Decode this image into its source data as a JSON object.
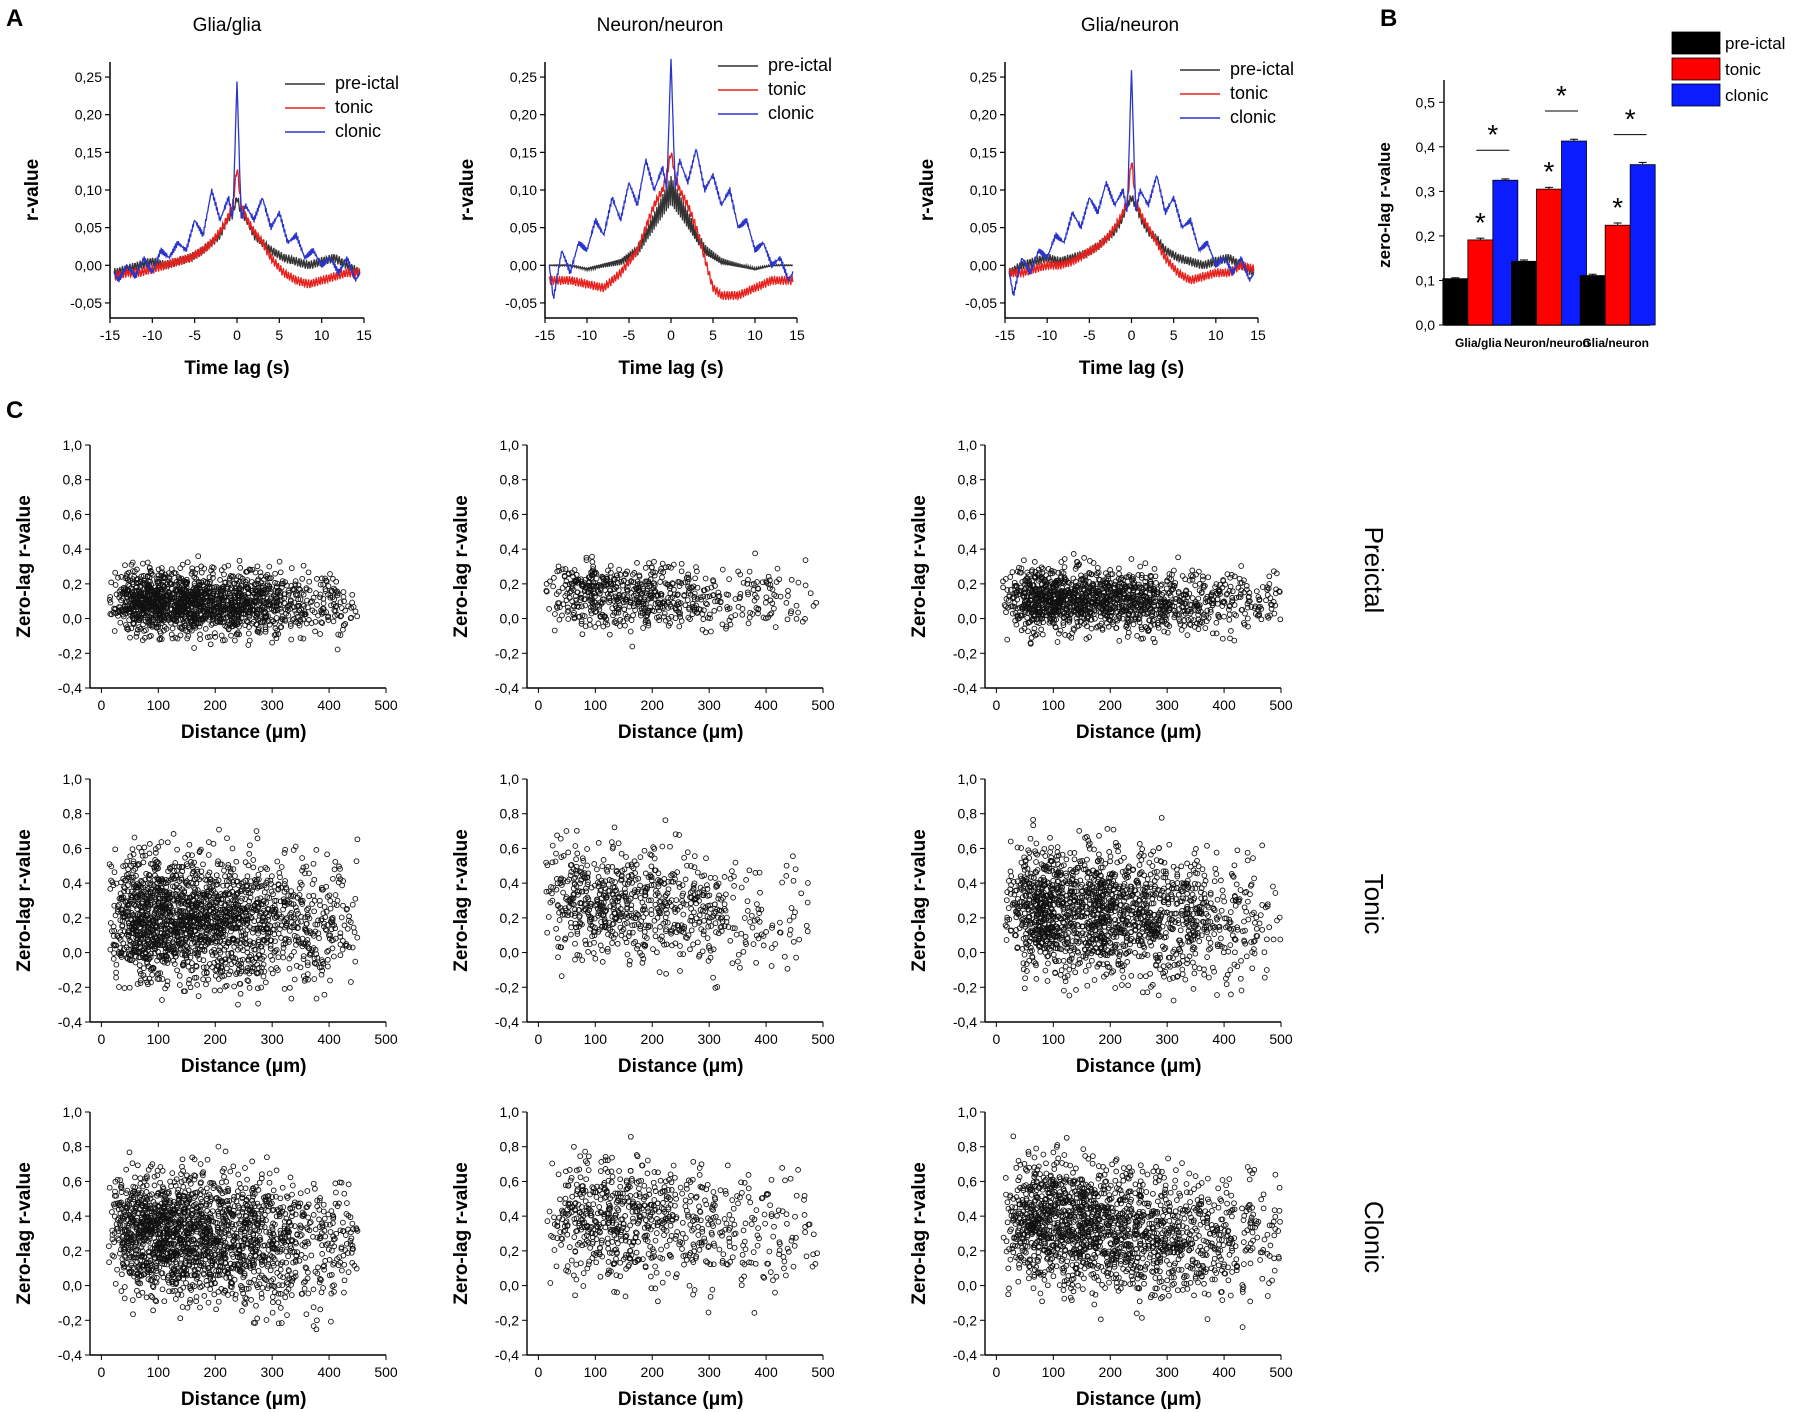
{
  "panel_labels": {
    "a": "A",
    "b": "B",
    "c": "C"
  },
  "chart_data": [
    {
      "id": "A1",
      "type": "line",
      "title": "Glia/glia",
      "xlabel": "Time lag (s)",
      "ylabel": "r-value",
      "xlim": [
        -15,
        15
      ],
      "ylim": [
        -0.07,
        0.27
      ],
      "xticks": [
        -15,
        -10,
        -5,
        0,
        5,
        10,
        15
      ],
      "xtick_labels": [
        "-15",
        "-10",
        "-5",
        "0",
        "5",
        "10",
        "15"
      ],
      "yticks": [
        -0.05,
        0,
        0.05,
        0.1,
        0.15,
        0.2,
        0.25
      ],
      "ytick_labels": [
        "-0,05",
        "0,00",
        "0,05",
        "0,10",
        "0,15",
        "0,20",
        "0,25"
      ],
      "series": [
        {
          "name": "pre-ictal",
          "color": "#333333",
          "x": [
            -14.5,
            -13,
            -11.5,
            -10,
            -8.5,
            -7,
            -5.5,
            -4,
            -3,
            -2,
            -1.2,
            -0.5,
            0,
            0.5,
            1.2,
            2,
            3,
            4,
            5.5,
            7,
            8.5,
            10,
            11.5,
            13,
            14.5
          ],
          "y": [
            -0.01,
            -0.005,
            0,
            0.005,
            0,
            0.005,
            0.01,
            0.02,
            0.03,
            0.04,
            0.06,
            0.07,
            0.09,
            0.07,
            0.06,
            0.04,
            0.03,
            0.02,
            0.01,
            0.005,
            0,
            0.005,
            0.01,
            0,
            -0.01
          ]
        },
        {
          "name": "tonic",
          "color": "#e8201c",
          "x": [
            -14.5,
            -13,
            -11.5,
            -10,
            -8.5,
            -7,
            -5.5,
            -4,
            -3,
            -2,
            -1.2,
            -0.5,
            0,
            0.5,
            1.2,
            2,
            3,
            4,
            5.5,
            7,
            8.5,
            10,
            11.5,
            13,
            14.5
          ],
          "y": [
            -0.015,
            -0.01,
            -0.01,
            -0.005,
            0,
            0.005,
            0.01,
            0.02,
            0.03,
            0.045,
            0.06,
            0.08,
            0.13,
            0.08,
            0.06,
            0.045,
            0.03,
            0.01,
            -0.01,
            -0.02,
            -0.025,
            -0.02,
            -0.015,
            -0.01,
            -0.01
          ]
        },
        {
          "name": "clonic",
          "color": "#2b35c9",
          "x": [
            -14.5,
            -14,
            -13,
            -12,
            -11,
            -10,
            -9,
            -8,
            -7,
            -6,
            -5,
            -4,
            -3,
            -2,
            -1,
            -0.5,
            0,
            0.5,
            1,
            2,
            3,
            4,
            5,
            6,
            7,
            8,
            9,
            10,
            11,
            12,
            13,
            14,
            14.5
          ],
          "y": [
            -0.01,
            -0.02,
            0,
            -0.015,
            0.01,
            -0.01,
            0.02,
            0.01,
            0.03,
            0.02,
            0.06,
            0.04,
            0.1,
            0.06,
            0.09,
            0.06,
            0.245,
            0.06,
            0.08,
            0.06,
            0.09,
            0.05,
            0.07,
            0.03,
            0.04,
            0.01,
            0.02,
            0.0,
            0.01,
            -0.01,
            0.01,
            -0.02,
            -0.01
          ]
        }
      ]
    },
    {
      "id": "A2",
      "type": "line",
      "title": "Neuron/neuron",
      "xlabel": "Time lag (s)",
      "ylabel": "r-value",
      "xlim": [
        -15,
        15
      ],
      "ylim": [
        -0.07,
        0.27
      ],
      "xticks": [
        -15,
        -10,
        -5,
        0,
        5,
        10,
        15
      ],
      "xtick_labels": [
        "-15",
        "-10",
        "-5",
        "0",
        "5",
        "10",
        "15"
      ],
      "yticks": [
        -0.05,
        0,
        0.05,
        0.1,
        0.15,
        0.2,
        0.25
      ],
      "ytick_labels": [
        "-0,05",
        "0,00",
        "0,05",
        "0,10",
        "0,15",
        "0,20",
        "0,25"
      ],
      "series": [
        {
          "name": "pre-ictal",
          "color": "#333333",
          "x": [
            -14.5,
            -12,
            -10,
            -8,
            -6,
            -4,
            -3,
            -2,
            -1,
            -0.5,
            0,
            0.5,
            1,
            2,
            3,
            4,
            6,
            8,
            10,
            12,
            14.5
          ],
          "y": [
            0,
            0,
            -0.005,
            0,
            0.005,
            0.02,
            0.04,
            0.06,
            0.08,
            0.09,
            0.1,
            0.09,
            0.08,
            0.06,
            0.04,
            0.02,
            0.005,
            0,
            -0.005,
            0,
            0
          ]
        },
        {
          "name": "tonic",
          "color": "#e8201c",
          "x": [
            -14.5,
            -12,
            -10,
            -8,
            -6,
            -4,
            -3,
            -2,
            -1,
            -0.5,
            0,
            0.5,
            1,
            2,
            3,
            4,
            5,
            6,
            8,
            10,
            12,
            14.5
          ],
          "y": [
            -0.02,
            -0.02,
            -0.025,
            -0.03,
            -0.01,
            0.02,
            0.05,
            0.08,
            0.1,
            0.12,
            0.15,
            0.12,
            0.1,
            0.08,
            0.05,
            0.01,
            -0.03,
            -0.04,
            -0.04,
            -0.03,
            -0.02,
            -0.02
          ]
        },
        {
          "name": "clonic",
          "color": "#2b35c9",
          "x": [
            -14.5,
            -14,
            -13,
            -12,
            -11,
            -10,
            -9,
            -8,
            -7,
            -6,
            -5,
            -4,
            -3,
            -2,
            -1,
            -0.5,
            0,
            0.5,
            1,
            2,
            3,
            4,
            5,
            6,
            7,
            8,
            9,
            10,
            11,
            12,
            13,
            14,
            14.5
          ],
          "y": [
            0,
            -0.045,
            0.02,
            -0.01,
            0.03,
            0.02,
            0.06,
            0.04,
            0.09,
            0.06,
            0.11,
            0.08,
            0.14,
            0.1,
            0.13,
            0.1,
            0.275,
            0.1,
            0.14,
            0.11,
            0.155,
            0.1,
            0.12,
            0.08,
            0.1,
            0.05,
            0.06,
            0.02,
            0.03,
            0.0,
            0.01,
            -0.02,
            -0.01
          ]
        }
      ]
    },
    {
      "id": "A3",
      "type": "line",
      "title": "Glia/neuron",
      "xlabel": "Time lag (s)",
      "ylabel": "r-value",
      "xlim": [
        -15,
        15
      ],
      "ylim": [
        -0.07,
        0.27
      ],
      "xticks": [
        -15,
        -10,
        -5,
        0,
        5,
        10,
        15
      ],
      "xtick_labels": [
        "-15",
        "-10",
        "-5",
        "0",
        "5",
        "10",
        "15"
      ],
      "yticks": [
        -0.05,
        0,
        0.05,
        0.1,
        0.15,
        0.2,
        0.25
      ],
      "ytick_labels": [
        "-0,05",
        "0,00",
        "0,05",
        "0,10",
        "0,15",
        "0,20",
        "0,25"
      ],
      "series": [
        {
          "name": "pre-ictal",
          "color": "#333333",
          "x": [
            -14.5,
            -13,
            -11.5,
            -10,
            -8.5,
            -7,
            -5.5,
            -4,
            -3,
            -2,
            -1.2,
            -0.5,
            0,
            0.5,
            1.2,
            2,
            3,
            4,
            5.5,
            7,
            8.5,
            10,
            11.5,
            13,
            14.5
          ],
          "y": [
            -0.01,
            0,
            0.005,
            0.01,
            0.005,
            0.01,
            0.015,
            0.025,
            0.035,
            0.045,
            0.06,
            0.08,
            0.09,
            0.08,
            0.06,
            0.045,
            0.035,
            0.02,
            0.01,
            0.005,
            0,
            0.005,
            0.01,
            0,
            -0.01
          ]
        },
        {
          "name": "tonic",
          "color": "#e8201c",
          "x": [
            -14.5,
            -13,
            -11.5,
            -10,
            -8.5,
            -7,
            -5.5,
            -4,
            -3,
            -2,
            -1.2,
            -0.5,
            0,
            0.5,
            1.2,
            2,
            3,
            4,
            5.5,
            7,
            8.5,
            10,
            11.5,
            13,
            14.5
          ],
          "y": [
            -0.01,
            -0.01,
            -0.005,
            0,
            0,
            0.005,
            0.015,
            0.025,
            0.035,
            0.05,
            0.065,
            0.085,
            0.14,
            0.085,
            0.065,
            0.05,
            0.03,
            0.01,
            -0.01,
            -0.02,
            -0.015,
            -0.01,
            -0.01,
            0,
            -0.005
          ]
        },
        {
          "name": "clonic",
          "color": "#2b35c9",
          "x": [
            -14.5,
            -14,
            -13,
            -12,
            -11,
            -10,
            -9,
            -8,
            -7,
            -6,
            -5,
            -4,
            -3,
            -2,
            -1,
            -0.5,
            0,
            0.5,
            1,
            2,
            3,
            4,
            5,
            6,
            7,
            8,
            9,
            10,
            11,
            12,
            13,
            14,
            14.5
          ],
          "y": [
            -0.01,
            -0.04,
            0.01,
            -0.01,
            0.02,
            0.01,
            0.04,
            0.03,
            0.07,
            0.05,
            0.09,
            0.07,
            0.11,
            0.08,
            0.1,
            0.07,
            0.26,
            0.07,
            0.1,
            0.08,
            0.12,
            0.07,
            0.09,
            0.05,
            0.06,
            0.02,
            0.03,
            0.0,
            0.01,
            -0.01,
            0.01,
            -0.02,
            -0.01
          ]
        }
      ]
    },
    {
      "id": "B",
      "type": "bar",
      "ylabel": "zero-lag r-value",
      "categories": [
        "Glia/glia",
        "Neuron/neuron",
        "Glia/neuron"
      ],
      "ylim": [
        0,
        0.55
      ],
      "yticks": [
        0,
        0.1,
        0.2,
        0.3,
        0.4,
        0.5
      ],
      "ytick_labels": [
        "0,0",
        "0,1",
        "0,2",
        "0,3",
        "0,4",
        "0,5"
      ],
      "series": [
        {
          "name": "pre-ictal",
          "color": "#000000",
          "values": [
            0.104,
            0.143,
            0.111
          ],
          "errors": [
            0.002,
            0.003,
            0.003
          ]
        },
        {
          "name": "tonic",
          "color": "#ff0000",
          "values": [
            0.191,
            0.305,
            0.224
          ],
          "errors": [
            0.004,
            0.004,
            0.005
          ]
        },
        {
          "name": "clonic",
          "color": "#0b1cff",
          "values": [
            0.325,
            0.413,
            0.36
          ],
          "errors": [
            0.003,
            0.004,
            0.005
          ]
        }
      ],
      "annotations": [
        "*",
        "*",
        "*",
        "*",
        "*",
        "*"
      ]
    },
    {
      "id": "C",
      "type": "scatter",
      "xlabel": "Distance (μm)",
      "ylabel": "Zero-lag r-value",
      "xlim": [
        -20,
        500
      ],
      "ylim": [
        -0.4,
        1.0
      ],
      "xticks": [
        0,
        100,
        200,
        300,
        400,
        500
      ],
      "xtick_labels": [
        "0",
        "100",
        "200",
        "300",
        "400",
        "500"
      ],
      "yticks": [
        -0.4,
        -0.2,
        0,
        0.2,
        0.4,
        0.6,
        0.8,
        1.0
      ],
      "ytick_labels": [
        "-0,4",
        "-0,2",
        "0,0",
        "0,2",
        "0,4",
        "0,6",
        "0,8",
        "1,0"
      ],
      "row_labels": [
        "Preictal",
        "Tonic",
        "Clonic"
      ],
      "columns": [
        "Glia/glia",
        "Neuron/neuron",
        "Glia/neuron"
      ],
      "panels": [
        {
          "row": 0,
          "col": 0,
          "n": 1600,
          "xmax": 450,
          "mean": 0.1,
          "spread": 0.09
        },
        {
          "row": 0,
          "col": 1,
          "n": 650,
          "xmax": 490,
          "mean": 0.15,
          "spread": 0.09
        },
        {
          "row": 0,
          "col": 2,
          "n": 1400,
          "xmax": 500,
          "mean": 0.12,
          "spread": 0.09
        },
        {
          "row": 1,
          "col": 0,
          "n": 1900,
          "xmax": 450,
          "mean": 0.22,
          "spread": 0.18
        },
        {
          "row": 1,
          "col": 1,
          "n": 750,
          "xmax": 490,
          "mean": 0.32,
          "spread": 0.16
        },
        {
          "row": 1,
          "col": 2,
          "n": 1700,
          "xmax": 500,
          "mean": 0.27,
          "spread": 0.18
        },
        {
          "row": 2,
          "col": 0,
          "n": 1900,
          "xmax": 450,
          "mean": 0.32,
          "spread": 0.18
        },
        {
          "row": 2,
          "col": 1,
          "n": 750,
          "xmax": 490,
          "mean": 0.42,
          "spread": 0.17
        },
        {
          "row": 2,
          "col": 2,
          "n": 1700,
          "xmax": 500,
          "mean": 0.38,
          "spread": 0.18
        }
      ]
    }
  ]
}
